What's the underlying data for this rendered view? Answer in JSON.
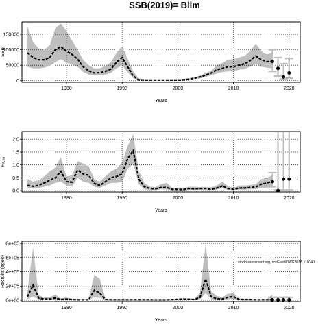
{
  "title": "SSB(2019)= Blim",
  "watermark": "stockassessment.org, codEastWIWG2018, r10340",
  "colors": {
    "band": "#bebebe",
    "line": "#000000",
    "grid": "#000000",
    "projection_bar": "#bebebe"
  },
  "chart_data": [
    {
      "type": "line",
      "ylabel": "SSB",
      "xlabel": "Years",
      "xlim": [
        1972,
        2022
      ],
      "ylim": [
        -5000,
        190000
      ],
      "xticks": [
        1980,
        1990,
        2000,
        2010,
        2020
      ],
      "yticks": [
        0,
        50000,
        100000,
        150000
      ],
      "ytick_labels": [
        "0",
        "50000",
        "100000",
        "150000"
      ],
      "grid": true,
      "series": [
        {
          "x": [
            1973,
            1974,
            1975,
            1976,
            1977,
            1978,
            1979,
            1980,
            1981,
            1982,
            1983,
            1984,
            1985,
            1986,
            1987,
            1988,
            1989,
            1990,
            1991,
            1992,
            1993,
            1994,
            1995,
            1996,
            1997,
            1998,
            1999,
            2000,
            2001,
            2002,
            2003,
            2004,
            2005,
            2006,
            2007,
            2008,
            2009,
            2010,
            2011,
            2012,
            2013,
            2014,
            2015,
            2016,
            2017
          ],
          "values": [
            90000,
            75000,
            68000,
            68000,
            75000,
            100000,
            110000,
            95000,
            85000,
            70000,
            45000,
            32000,
            25000,
            26000,
            30000,
            38000,
            60000,
            75000,
            45000,
            15000,
            3000,
            2000,
            2000,
            2000,
            2000,
            2000,
            2000,
            2000,
            3000,
            5000,
            8000,
            12000,
            18000,
            25000,
            35000,
            40000,
            45000,
            45000,
            50000,
            55000,
            65000,
            80000,
            68000,
            62000,
            62000
          ],
          "upper": [
            175000,
            125000,
            105000,
            100000,
            115000,
            170000,
            185000,
            160000,
            130000,
            100000,
            68000,
            50000,
            40000,
            40000,
            48000,
            60000,
            90000,
            112000,
            70000,
            30000,
            8000,
            4000,
            4000,
            4000,
            4000,
            4000,
            4000,
            4000,
            5000,
            8000,
            11000,
            16000,
            25000,
            32000,
            50000,
            57000,
            68000,
            70000,
            75000,
            80000,
            95000,
            120000,
            95000,
            85000,
            90000
          ],
          "lower": [
            45000,
            40000,
            40000,
            42000,
            48000,
            60000,
            70000,
            58000,
            52000,
            45000,
            28000,
            20000,
            17000,
            18000,
            20000,
            25000,
            40000,
            50000,
            28000,
            8000,
            1000,
            800,
            800,
            800,
            800,
            800,
            800,
            800,
            1000,
            2500,
            5000,
            8000,
            12000,
            17000,
            23000,
            28000,
            30000,
            30000,
            35000,
            38000,
            45000,
            55000,
            45000,
            42000,
            40000
          ],
          "marker_x": [
            2017
          ],
          "marker_y": [
            62000
          ]
        }
      ],
      "projection_points": {
        "x": [
          2018,
          2019,
          2020
        ],
        "values": [
          40000,
          12000,
          25000
        ]
      },
      "projection_bars": {
        "x": [
          2017,
          2018,
          2019,
          2020
        ],
        "upper": [
          100000,
          75000,
          55000,
          72000
        ],
        "lower": [
          30000,
          15000,
          5000,
          8000
        ]
      }
    },
    {
      "type": "line",
      "ylabel": "F",
      "ylabel_sub": "5-10",
      "xlabel": "Years",
      "xlim": [
        1972,
        2022
      ],
      "ylim": [
        -0.05,
        2.3
      ],
      "xticks": [
        1980,
        1990,
        2000,
        2010,
        2020
      ],
      "yticks": [
        0.0,
        0.5,
        1.0,
        1.5,
        2.0
      ],
      "ytick_labels": [
        "0.0",
        "0.5",
        "1.0",
        "1.5",
        "2.0"
      ],
      "grid": true,
      "series": [
        {
          "x": [
            1973,
            1974,
            1975,
            1976,
            1977,
            1978,
            1979,
            1980,
            1981,
            1982,
            1983,
            1984,
            1985,
            1986,
            1987,
            1988,
            1989,
            1990,
            1991,
            1992,
            1993,
            1994,
            1995,
            1996,
            1997,
            1998,
            1999,
            2000,
            2001,
            2002,
            2003,
            2004,
            2005,
            2006,
            2007,
            2008,
            2009,
            2010,
            2011,
            2012,
            2013,
            2014,
            2015,
            2016,
            2017
          ],
          "values": [
            0.2,
            0.17,
            0.2,
            0.3,
            0.4,
            0.5,
            0.75,
            0.35,
            0.33,
            0.8,
            0.65,
            0.6,
            0.28,
            0.2,
            0.35,
            0.5,
            0.55,
            0.65,
            1.25,
            1.55,
            0.45,
            0.15,
            0.08,
            0.07,
            0.12,
            0.12,
            0.05,
            0.05,
            0.04,
            0.08,
            0.07,
            0.08,
            0.08,
            0.05,
            0.1,
            0.18,
            0.08,
            0.05,
            0.1,
            0.1,
            0.12,
            0.14,
            0.25,
            0.3,
            0.35
          ],
          "upper": [
            0.45,
            0.35,
            0.4,
            0.55,
            0.75,
            0.9,
            1.3,
            0.55,
            0.6,
            1.15,
            1.05,
            0.95,
            0.45,
            0.35,
            0.55,
            0.75,
            0.85,
            1.1,
            1.75,
            2.2,
            0.75,
            0.3,
            0.15,
            0.14,
            0.25,
            0.3,
            0.12,
            0.1,
            0.1,
            0.15,
            0.15,
            0.14,
            0.14,
            0.12,
            0.2,
            0.35,
            0.18,
            0.1,
            0.2,
            0.2,
            0.22,
            0.25,
            0.45,
            0.5,
            0.6
          ],
          "lower": [
            0.1,
            0.08,
            0.1,
            0.15,
            0.2,
            0.3,
            0.35,
            0.2,
            0.15,
            0.5,
            0.35,
            0.3,
            0.15,
            0.1,
            0.2,
            0.3,
            0.3,
            0.35,
            0.85,
            1.05,
            0.25,
            0.05,
            0.02,
            0.02,
            0.05,
            0.04,
            0.01,
            0.01,
            0.01,
            0.03,
            0.02,
            0.03,
            0.03,
            0.02,
            0.04,
            0.08,
            0.03,
            0.02,
            0.04,
            0.04,
            0.05,
            0.06,
            0.1,
            0.12,
            0.15
          ],
          "marker_x": [
            2017
          ],
          "marker_y": [
            0.35
          ]
        }
      ],
      "projection_points": {
        "x": [
          2018,
          2019,
          2020
        ],
        "values": [
          0.0,
          0.45,
          0.45
        ]
      },
      "projection_bars": {
        "x": [
          2017,
          2018,
          2019,
          2020
        ],
        "upper": [
          0.7,
          3.0,
          3.0,
          3.0
        ],
        "lower": [
          0.15,
          0.02,
          0.02,
          0.02
        ]
      }
    },
    {
      "type": "line",
      "ylabel": "Recruits (age0)",
      "xlabel": "Years",
      "xlim": [
        1972,
        2022
      ],
      "ylim": [
        -20000,
        830000
      ],
      "xticks": [
        1980,
        1990,
        2000,
        2010,
        2020
      ],
      "yticks": [
        0,
        200000,
        400000,
        600000,
        800000
      ],
      "ytick_labels": [
        "0e+00",
        "2e+05",
        "4e+05",
        "6e+05",
        "8e+05"
      ],
      "grid": true,
      "series": [
        {
          "x": [
            1973,
            1974,
            1975,
            1976,
            1977,
            1978,
            1979,
            1980,
            1981,
            1982,
            1983,
            1984,
            1985,
            1986,
            1987,
            1988,
            1989,
            1990,
            1991,
            1992,
            1993,
            1994,
            1995,
            1996,
            1997,
            1998,
            1999,
            2000,
            2001,
            2002,
            2003,
            2004,
            2005,
            2006,
            2007,
            2008,
            2009,
            2010,
            2011,
            2012,
            2013,
            2014,
            2015,
            2016,
            2017
          ],
          "values": [
            50000,
            210000,
            30000,
            15000,
            15000,
            30000,
            8000,
            15000,
            8000,
            5000,
            5000,
            5000,
            140000,
            100000,
            8000,
            5000,
            5000,
            5000,
            5000,
            5000,
            5000,
            5000,
            5000,
            4000,
            4000,
            4000,
            8000,
            10000,
            15000,
            12000,
            8000,
            40000,
            300000,
            50000,
            20000,
            15000,
            40000,
            50000,
            10000,
            8000,
            8000,
            5000,
            5000,
            5000,
            5000
          ],
          "upper": [
            130000,
            740000,
            70000,
            40000,
            40000,
            80000,
            25000,
            35000,
            20000,
            15000,
            15000,
            15000,
            360000,
            300000,
            20000,
            10000,
            10000,
            10000,
            10000,
            10000,
            10000,
            10000,
            10000,
            8000,
            8000,
            8000,
            15000,
            20000,
            25000,
            20000,
            15000,
            100000,
            800000,
            120000,
            60000,
            40000,
            90000,
            100000,
            25000,
            20000,
            18000,
            12000,
            12000,
            15000,
            80000
          ],
          "lower": [
            15000,
            50000,
            10000,
            5000,
            5000,
            8000,
            2000,
            5000,
            2000,
            1000,
            1000,
            1000,
            40000,
            30000,
            2000,
            1000,
            1000,
            1000,
            1000,
            1000,
            1000,
            1000,
            1000,
            800,
            800,
            800,
            2000,
            3000,
            5000,
            4000,
            2000,
            10000,
            100000,
            15000,
            5000,
            5000,
            10000,
            15000,
            3000,
            2000,
            2000,
            1000,
            1000,
            1000,
            1000
          ],
          "marker_x": [
            2017
          ],
          "marker_y": [
            5000
          ]
        }
      ],
      "projection_points": {
        "x": [
          2018,
          2019,
          2020
        ],
        "values": [
          5000,
          5000,
          5000
        ]
      },
      "projection_bars": {
        "x": [
          2017,
          2018,
          2019,
          2020
        ],
        "upper": [
          40000,
          40000,
          40000,
          40000
        ],
        "lower": [
          1000,
          1000,
          1000,
          1000
        ]
      }
    }
  ]
}
